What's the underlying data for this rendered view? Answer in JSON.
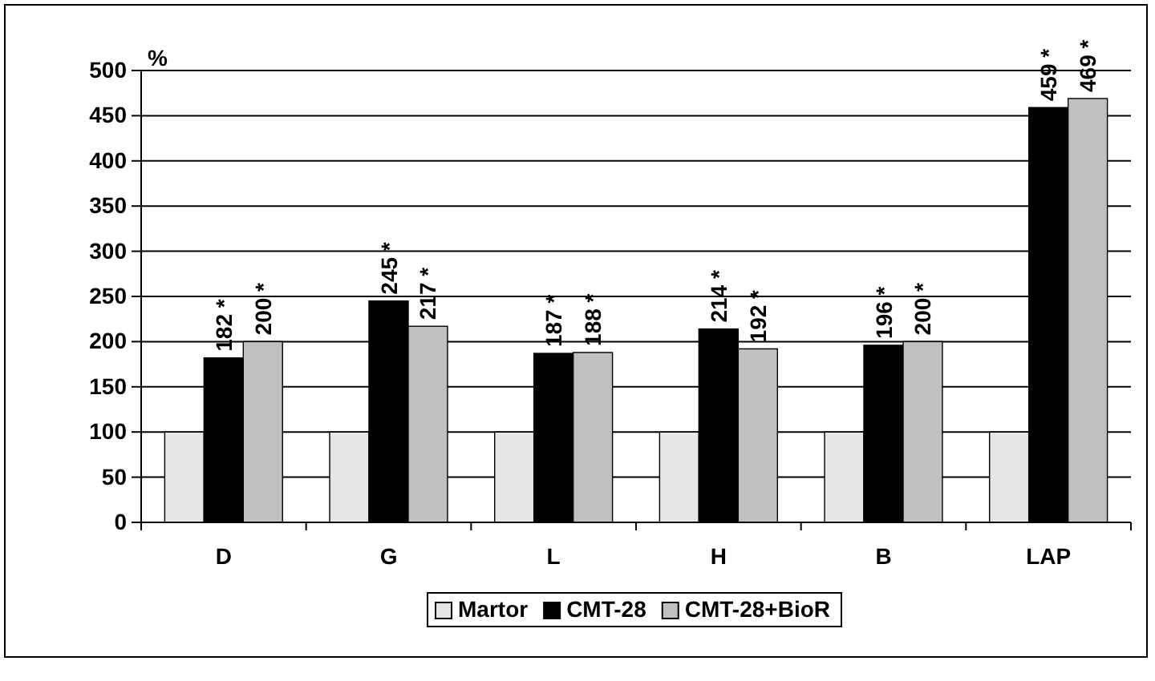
{
  "chart_data": {
    "type": "bar",
    "ylabel": "%",
    "categories": [
      "D",
      "G",
      "L",
      "H",
      "B",
      "LAP"
    ],
    "series": [
      {
        "name": "Martor",
        "color": "#e6e6e6",
        "values": [
          100,
          100,
          100,
          100,
          100,
          100
        ]
      },
      {
        "name": "CMT-28",
        "color": "#000000",
        "values": [
          182,
          245,
          187,
          214,
          196,
          459
        ],
        "value_labels": [
          "182 *",
          "245 *",
          "187 *",
          "214 *",
          "196 *",
          "459 *"
        ]
      },
      {
        "name": "CMT-28+BioR",
        "color": "#c0c0c0",
        "values": [
          200,
          217,
          188,
          192,
          200,
          469
        ],
        "value_labels": [
          "200 *",
          "217 *",
          "188 *",
          "192 *",
          "200 *",
          "469 *"
        ]
      }
    ],
    "ylim": [
      0,
      500
    ],
    "yticks": [
      0,
      50,
      100,
      150,
      200,
      250,
      300,
      350,
      400,
      450,
      500
    ],
    "grid": "y",
    "legend": "bottom"
  }
}
